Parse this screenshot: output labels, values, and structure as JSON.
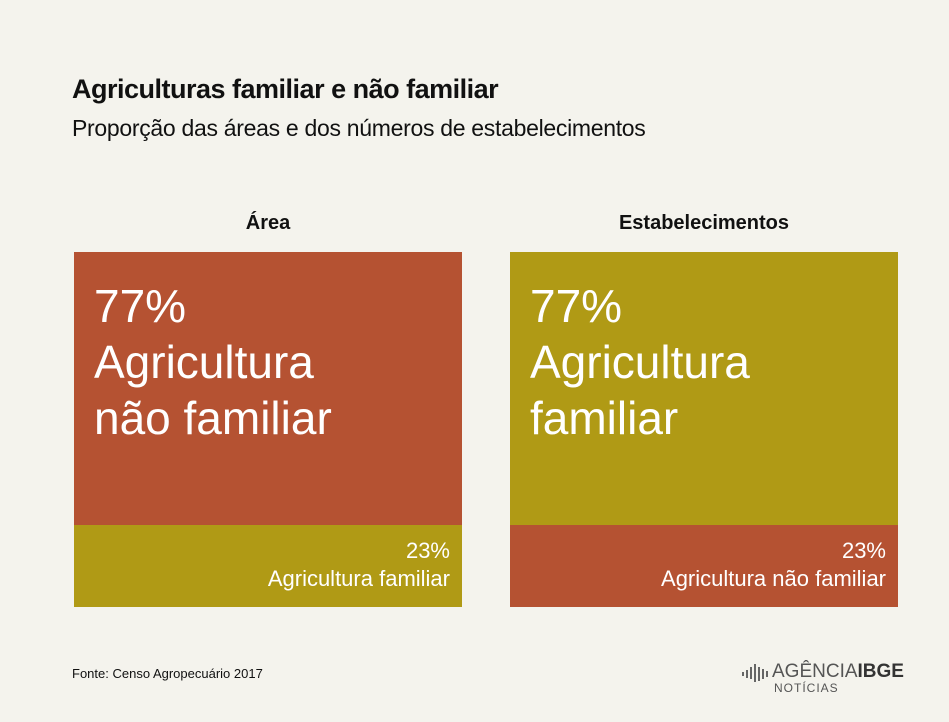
{
  "title": "Agriculturas familiar e não familiar",
  "subtitle": "Proporção das áreas e dos números de estabelecimentos",
  "source": "Fonte: Censo  Agropecuário  2017",
  "logo": {
    "main": "AGÊNCIA",
    "bold": "IBGE",
    "sub": "NOTÍCIAS"
  },
  "chart_data": [
    {
      "type": "stacked_bar",
      "title": "Área",
      "series": [
        {
          "name": "Agricultura não familiar",
          "color": "#b55232",
          "values": [
            77
          ],
          "value_labels": [
            "77%"
          ]
        },
        {
          "name": "Agricultura familiar",
          "color": "#b09a15",
          "values": [
            23
          ],
          "value_labels": [
            "23%"
          ]
        }
      ]
    },
    {
      "type": "stacked_bar",
      "title": "Estabelecimentos",
      "series": [
        {
          "name": "Agricultura familiar",
          "color": "#b09a15",
          "values": [
            77
          ],
          "value_labels": [
            "77%"
          ]
        },
        {
          "name": "Agricultura não familiar",
          "color": "#b55232",
          "values": [
            23
          ],
          "value_labels": [
            "23%"
          ]
        }
      ]
    }
  ]
}
